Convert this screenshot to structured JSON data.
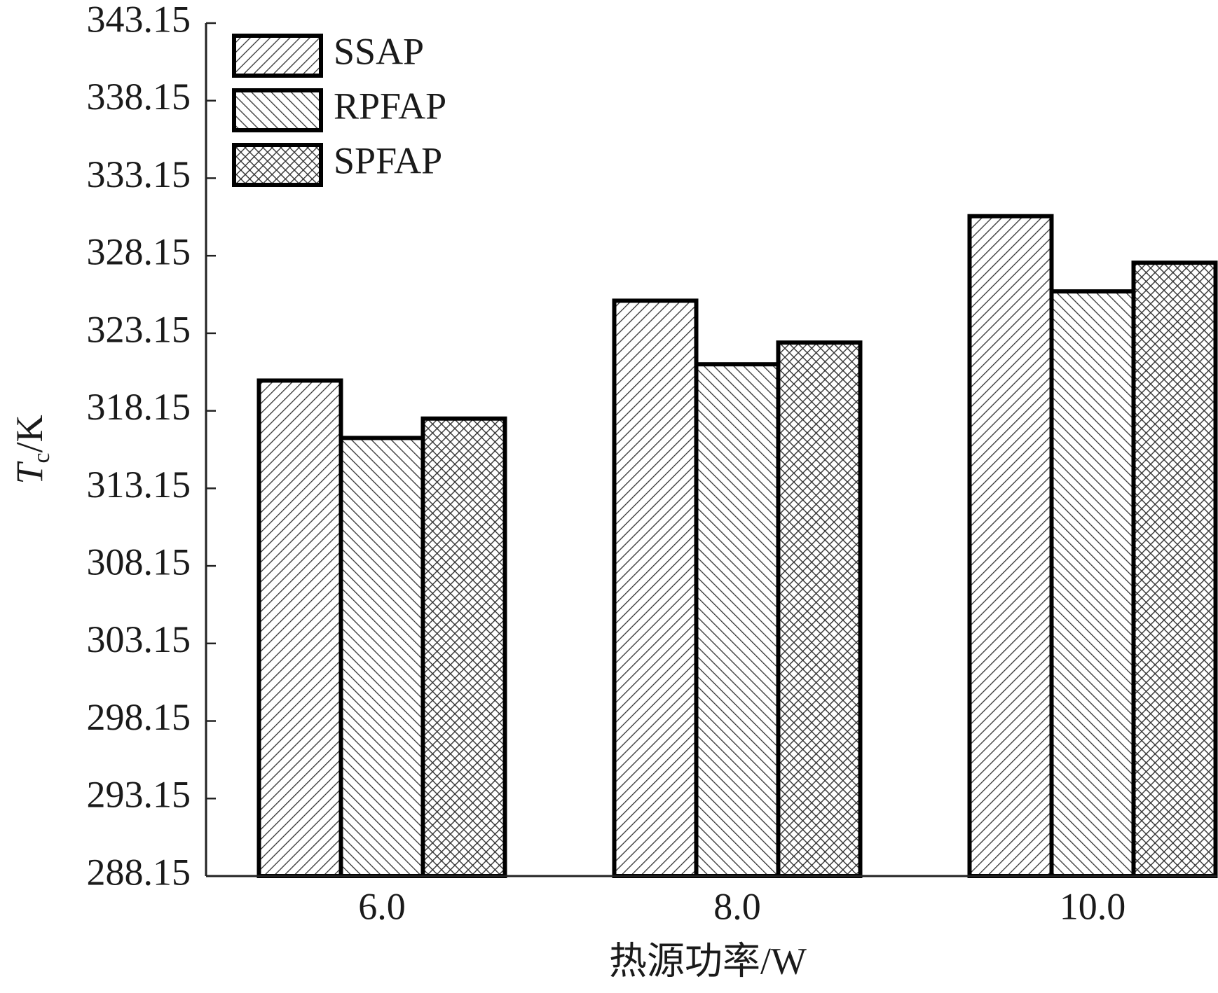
{
  "chart_data": {
    "type": "bar",
    "x_label": "热源功率/W",
    "y_label": {
      "symbol": "T",
      "subscript": "c",
      "unit": "/K"
    },
    "categories": [
      "6.0",
      "8.0",
      "10.0"
    ],
    "series": [
      {
        "name": "SSAP",
        "color": "#000000",
        "pattern": "diagonal",
        "values": [
          320.1,
          325.25,
          330.7
        ]
      },
      {
        "name": "RPFAP",
        "color": "#000000",
        "pattern": "back-diagonal",
        "values": [
          316.4,
          321.15,
          325.85
        ]
      },
      {
        "name": "SPFAP",
        "color": "#000000",
        "pattern": "crosshatch",
        "values": [
          317.65,
          322.55,
          327.7
        ]
      }
    ],
    "ylim": [
      288.15,
      343.15
    ],
    "yticks": [
      288.15,
      293.15,
      298.15,
      303.15,
      308.15,
      313.15,
      318.15,
      323.15,
      328.15,
      333.15,
      338.15,
      343.15
    ],
    "grid": false,
    "legend": "top-left"
  }
}
